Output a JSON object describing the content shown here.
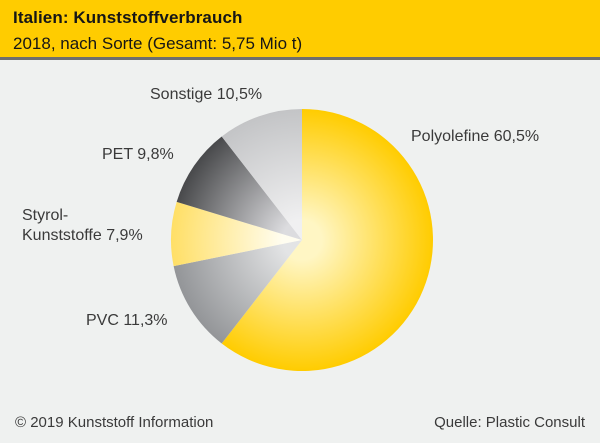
{
  "header": {
    "title": "Italien: Kunststoffverbrauch",
    "subtitle": "2018, nach Sorte (Gesamt: 5,75 Mio t)",
    "background_color": "#FFCC00",
    "divider_color": "#6E6E6E"
  },
  "chart_data": {
    "type": "pie",
    "title": "Italien: Kunststoffverbrauch",
    "subtitle": "2018, nach Sorte",
    "total_label": "Gesamt: 5,75 Mio t",
    "unit": "percent",
    "start_angle_deg": 0,
    "direction": "clockwise",
    "legend_position": "labels-around-pie",
    "slices": [
      {
        "name": "Polyolefine",
        "value": 60.5,
        "label": "Polyolefine 60,5%",
        "color_outer": "#FFCC00",
        "color_inner": "#FFF6C4"
      },
      {
        "name": "PVC",
        "value": 11.3,
        "label": "PVC 11,3%",
        "color_outer": "#939598",
        "color_inner": "#E3E4E5"
      },
      {
        "name": "Styrol-Kunststoffe",
        "value": 7.9,
        "label": "Styrol-Kunststoffe 7,9%",
        "color_outer": "#FFDF66",
        "color_inner": "#FFFDF0"
      },
      {
        "name": "PET",
        "value": 9.8,
        "label": "PET 9,8%",
        "color_outer": "#48494B",
        "color_inner": "#DCDCDF"
      },
      {
        "name": "Sonstige",
        "value": 10.5,
        "label": "Sonstige 10,5%",
        "color_outer": "#C3C4C6",
        "color_inner": "#F0F0F1"
      }
    ]
  },
  "labels": {
    "sonstige": "Sonstige 10,5%",
    "polyolefine": "Polyolefine 60,5%",
    "pet": "PET 9,8%",
    "styrol_line1": "Styrol-",
    "styrol_line2": "Kunststoffe 7,9%",
    "pvc": "PVC 11,3%"
  },
  "footer": {
    "copyright": "© 2019 Kunststoff Information",
    "source": "Quelle: Plastic Consult"
  }
}
